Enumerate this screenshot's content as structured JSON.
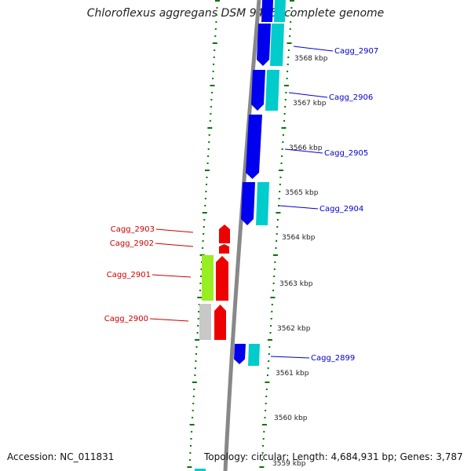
{
  "title": "Chloroflexus aggregans DSM 9485, complete genome",
  "footer": {
    "accession": "Accession: NC_011831",
    "topology": "Topology: circular",
    "length": "Length: 4,684,931 bp",
    "genes": "Genes: 3,787"
  },
  "colors": {
    "forward_cds": "#0000ee",
    "forward_rna": "#00cccc",
    "reverse_cds": "#ee0000",
    "reverse_other": "#99ee22",
    "reverse_pseudo": "#c8c8c8",
    "forward_label": "#0000cc",
    "reverse_label": "#cc0000",
    "tick": "#007700",
    "backbone": "#888888"
  },
  "scale_labels": [
    "3568 kbp",
    "3567 kbp",
    "3566 kbp",
    "3565 kbp",
    "3564 kbp",
    "3563 kbp",
    "3562 kbp",
    "3561 kbp",
    "3560 kbp",
    "3559 kbp"
  ],
  "forward_genes": [
    "Cagg_2907",
    "Cagg_2906",
    "Cagg_2905",
    "Cagg_2904",
    "Cagg_2899"
  ],
  "reverse_genes": [
    "Cagg_2903",
    "Cagg_2902",
    "Cagg_2901",
    "Cagg_2900"
  ]
}
